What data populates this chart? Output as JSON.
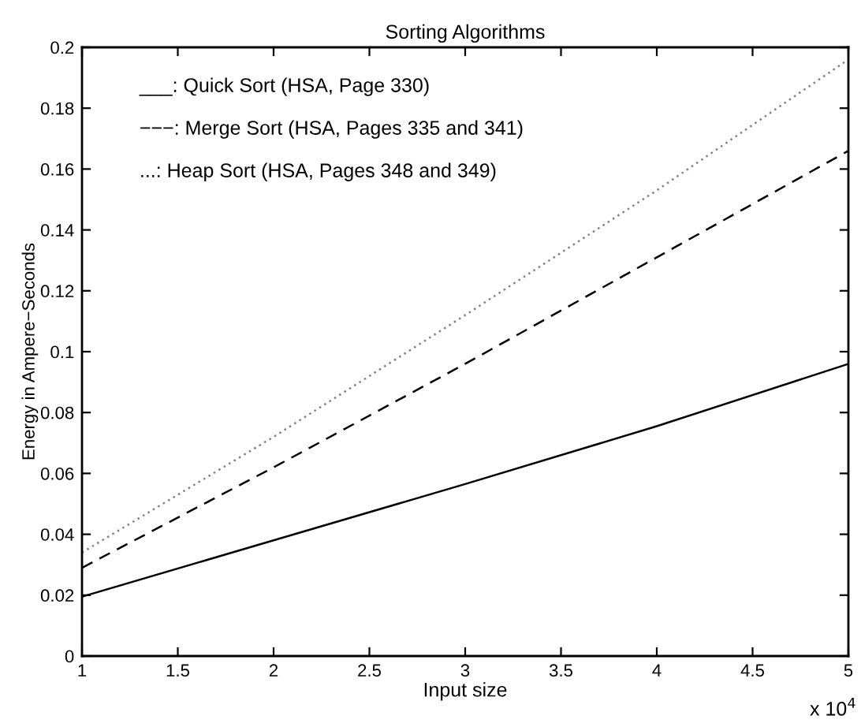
{
  "chart_data": {
    "type": "line",
    "title": "Sorting Algorithms",
    "xlabel": "Input size",
    "ylabel": "Energy in Ampere−Seconds",
    "x": [
      1,
      2,
      3,
      4,
      5
    ],
    "series": [
      {
        "color": "#000000",
        "line_style": "solid",
        "values": [
          0.0195,
          0.038,
          0.0565,
          0.0755,
          0.096
        ]
      },
      {
        "color": "#000000",
        "line_style": "dashed",
        "values": [
          0.029,
          0.062,
          0.096,
          0.131,
          0.166
        ]
      },
      {
        "color": "#808080",
        "line_style": "dotted",
        "values": [
          0.034,
          0.072,
          0.112,
          0.153,
          0.196
        ]
      }
    ],
    "annotations": [
      "___: Quick Sort (HSA, Page 330)",
      "−−−: Merge Sort (HSA, Pages 335 and 341)",
      "...: Heap Sort (HSA, Pages 348 and 349)",
      "x 10$^{4}$"
    ],
    "xlim": [
      1,
      5
    ],
    "xticks": [
      1,
      1.5,
      2,
      2.5,
      3,
      3.5,
      4,
      4.5,
      5
    ],
    "ylim": [
      0,
      0.2
    ],
    "yticks": [
      0,
      0.02,
      0.04,
      0.06,
      0.08,
      0.1,
      0.12,
      0.14,
      0.16,
      0.18,
      0.2
    ],
    "grid": false,
    "legend": false
  }
}
